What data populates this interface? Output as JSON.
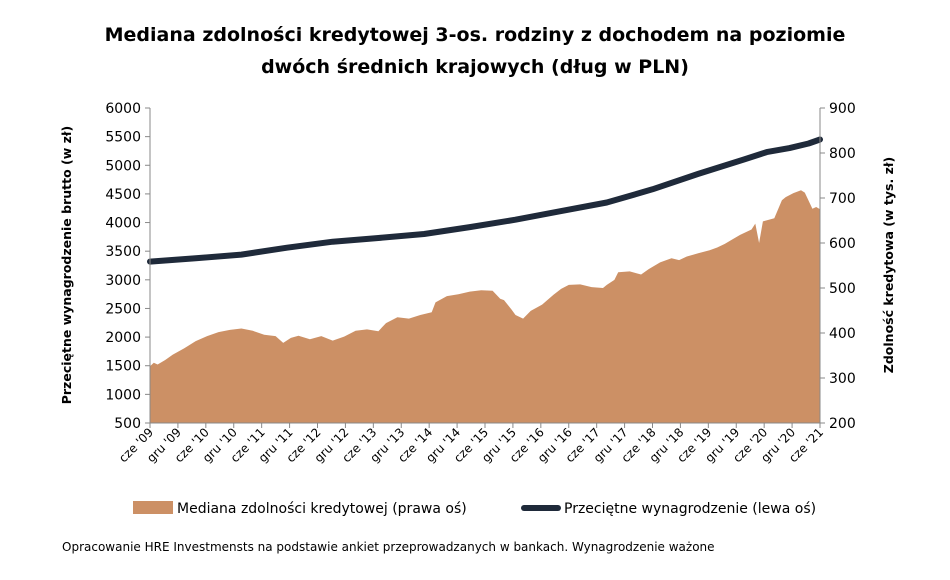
{
  "chart_data": {
    "type": "line",
    "title_line1": "Mediana zdolności kredytowej 3-os. rodziny z dochodem na poziomie",
    "title_line2": "dwóch średnich krajowych (dług w PLN)",
    "ylabel_left": "Przeciętne wynagrodzenie brutto (w zł)",
    "ylabel_right": "Zdolność kredytowa (w tys. zł)",
    "ylim_left": [
      500,
      6000
    ],
    "ylim_right": [
      200,
      900
    ],
    "yticks_left": [
      "6000",
      "5500",
      "5000",
      "4500",
      "4000",
      "3500",
      "3000",
      "2500",
      "2000",
      "1500",
      "1000",
      "500"
    ],
    "yticks_right": [
      "900",
      "800",
      "700",
      "600",
      "500",
      "400",
      "300",
      "200"
    ],
    "xticks": [
      "cze '09",
      "gru '09",
      "cze '10",
      "gru '10",
      "cze '11",
      "gru '11",
      "cze '12",
      "gru '12",
      "cze '13",
      "gru '13",
      "cze '14",
      "gru '14",
      "cze '15",
      "gru '15",
      "cze '16",
      "gru '16",
      "cze '17",
      "gru '17",
      "cze '18",
      "gru '18",
      "cze '19",
      "gru '19",
      "cze '20",
      "gru '20",
      "cze '21"
    ],
    "series": [
      {
        "name": "Mediana zdolności kredytowej (prawa oś)",
        "axis": "right",
        "kind": "area",
        "color": "#CC9065",
        "points": [
          [
            0,
            326
          ],
          [
            1,
            334
          ],
          [
            2,
            330
          ],
          [
            4,
            340
          ],
          [
            6,
            352
          ],
          [
            9,
            366
          ],
          [
            12,
            382
          ],
          [
            15,
            393
          ],
          [
            18,
            402
          ],
          [
            21,
            407
          ],
          [
            24,
            410
          ],
          [
            27,
            405
          ],
          [
            30,
            396
          ],
          [
            33,
            393
          ],
          [
            35,
            378
          ],
          [
            37,
            389
          ],
          [
            39,
            394
          ],
          [
            42,
            386
          ],
          [
            45,
            393
          ],
          [
            48,
            383
          ],
          [
            51,
            392
          ],
          [
            54,
            405
          ],
          [
            57,
            408
          ],
          [
            60,
            404
          ],
          [
            62,
            422
          ],
          [
            65,
            435
          ],
          [
            68,
            432
          ],
          [
            71,
            440
          ],
          [
            74,
            446
          ],
          [
            75,
            468
          ],
          [
            78,
            482
          ],
          [
            81,
            486
          ],
          [
            84,
            492
          ],
          [
            87,
            495
          ],
          [
            90,
            494
          ],
          [
            92,
            476
          ],
          [
            93,
            473
          ],
          [
            95,
            452
          ],
          [
            96,
            440
          ],
          [
            98,
            432
          ],
          [
            100,
            449
          ],
          [
            103,
            463
          ],
          [
            106,
            485
          ],
          [
            108,
            498
          ],
          [
            110,
            507
          ],
          [
            113,
            508
          ],
          [
            116,
            502
          ],
          [
            119,
            500
          ],
          [
            120,
            507
          ],
          [
            122,
            518
          ],
          [
            123,
            535
          ],
          [
            126,
            537
          ],
          [
            129,
            530
          ],
          [
            131,
            542
          ],
          [
            134,
            557
          ],
          [
            137,
            566
          ],
          [
            139,
            562
          ],
          [
            141,
            570
          ],
          [
            144,
            577
          ],
          [
            147,
            584
          ],
          [
            149,
            590
          ],
          [
            151,
            598
          ],
          [
            153,
            608
          ],
          [
            155,
            618
          ],
          [
            158,
            630
          ],
          [
            159,
            643
          ],
          [
            160,
            600
          ],
          [
            161,
            648
          ],
          [
            164,
            655
          ],
          [
            166,
            695
          ],
          [
            167,
            702
          ],
          [
            169,
            711
          ],
          [
            171,
            717
          ],
          [
            172,
            712
          ],
          [
            174,
            676
          ],
          [
            175,
            680
          ],
          [
            176,
            675
          ]
        ]
      },
      {
        "name": "Przeciętne wynagrodzenie (lewa oś)",
        "axis": "left",
        "kind": "line",
        "color": "#1F2A3A",
        "points": [
          [
            0,
            3318
          ],
          [
            12,
            3375
          ],
          [
            24,
            3440
          ],
          [
            36,
            3560
          ],
          [
            48,
            3665
          ],
          [
            60,
            3730
          ],
          [
            72,
            3800
          ],
          [
            84,
            3920
          ],
          [
            96,
            4050
          ],
          [
            108,
            4200
          ],
          [
            120,
            4350
          ],
          [
            132,
            4580
          ],
          [
            144,
            4850
          ],
          [
            156,
            5100
          ],
          [
            162,
            5230
          ],
          [
            168,
            5300
          ],
          [
            173,
            5380
          ],
          [
            176,
            5450
          ]
        ]
      }
    ]
  },
  "legend": {
    "area_label": "Mediana zdolności kredytowej (prawa oś)",
    "line_label": "Przeciętne wynagrodzenie (lewa oś)"
  },
  "footnote": "Opracowanie HRE Investmensts na podstawie ankiet przeprowadzanych w bankach. Wynagrodzenie ważone"
}
